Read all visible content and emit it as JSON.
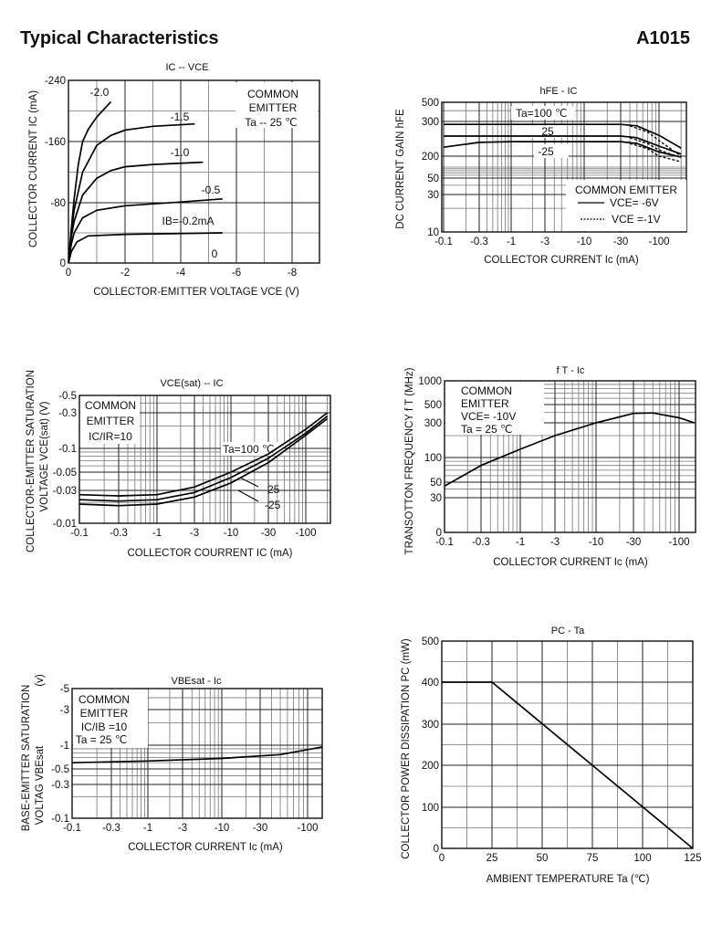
{
  "page": {
    "heading": "Typical Characteristics",
    "part_number": "A1015"
  },
  "chart_data": [
    {
      "id": "ic-vce",
      "type": "line",
      "title": "IC -- VCE",
      "xlabel": "COLLECTOR-EMITTER VOLTAGE   VCE (V)",
      "ylabel": "COLLECTOR CURRENT IC (mA)",
      "x_scale": "linear",
      "y_scale": "linear",
      "xticks": [
        0,
        -2,
        -4,
        -6,
        -8
      ],
      "xtick_labels": [
        "0",
        "-2",
        "-4",
        "-6",
        "-8"
      ],
      "yticks": [
        0,
        -80,
        -160,
        -240
      ],
      "ytick_labels": [
        "0",
        "-80",
        "-160",
        "-240"
      ],
      "legend": [
        "COMMON",
        "EMITTER",
        "Ta --  25 ℃"
      ],
      "series": [
        {
          "name": "IB=-2.0mA",
          "label": "-2.0",
          "style": "solid",
          "points": [
            [
              0,
              0
            ],
            [
              -0.1,
              -45
            ],
            [
              -0.2,
              -85
            ],
            [
              -0.35,
              -130
            ],
            [
              -0.5,
              -160
            ],
            [
              -0.7,
              -176
            ],
            [
              -1.0,
              -192
            ],
            [
              -1.5,
              -212
            ]
          ]
        },
        {
          "name": "IB=-1.5mA",
          "label": "-1.5",
          "style": "solid",
          "points": [
            [
              0,
              0
            ],
            [
              -0.1,
              -40
            ],
            [
              -0.2,
              -70
            ],
            [
              -0.5,
              -120
            ],
            [
              -1,
              -155
            ],
            [
              -1.5,
              -168
            ],
            [
              -2,
              -175
            ],
            [
              -3,
              -180
            ],
            [
              -4.5,
              -183
            ]
          ]
        },
        {
          "name": "IB=-1.0mA",
          "label": "-1.0",
          "style": "solid",
          "points": [
            [
              0,
              0
            ],
            [
              -0.1,
              -35
            ],
            [
              -0.2,
              -55
            ],
            [
              -0.5,
              -90
            ],
            [
              -1,
              -112
            ],
            [
              -1.5,
              -122
            ],
            [
              -2,
              -127
            ],
            [
              -3,
              -130
            ],
            [
              -4.8,
              -133
            ]
          ]
        },
        {
          "name": "IB=-0.5mA",
          "label": "-0.5",
          "style": "solid",
          "points": [
            [
              0,
              0
            ],
            [
              -0.1,
              -25
            ],
            [
              -0.2,
              -40
            ],
            [
              -0.5,
              -60
            ],
            [
              -1,
              -70
            ],
            [
              -2,
              -76
            ],
            [
              -4,
              -81
            ],
            [
              -5.5,
              -85
            ]
          ]
        },
        {
          "name": "IB=-0.2mA",
          "label": "IB=-0.2mA",
          "style": "solid",
          "points": [
            [
              0,
              0
            ],
            [
              -0.1,
              -15
            ],
            [
              -0.3,
              -28
            ],
            [
              -0.7,
              -36
            ],
            [
              -2,
              -38
            ],
            [
              -5.5,
              -40
            ]
          ]
        },
        {
          "name": "IB=0",
          "label": "0",
          "style": "none",
          "points": []
        }
      ]
    },
    {
      "id": "hfe-ic",
      "type": "line",
      "title": "hFE  -  IC",
      "xlabel": "COLLECTOR CURRENT Ic  (mA)",
      "ylabel": "DC CURRENT GAIN hFE",
      "x_scale": "log",
      "y_scale": "log",
      "xticks": [
        -0.1,
        -0.3,
        -1,
        -3,
        -10,
        -30,
        -100
      ],
      "xtick_labels": [
        "-0.1",
        "-0.3",
        "-1",
        "-3",
        "-10",
        "-30",
        "-100"
      ],
      "yticks": [
        10,
        30,
        50,
        200,
        300,
        500
      ],
      "ytick_labels": [
        "10",
        "30",
        "50",
        "200",
        "300",
        "500"
      ],
      "legend": [
        "COMMON EMITTER",
        "VCE= -6V",
        "VCE =-1V"
      ],
      "series": [
        {
          "name": "Ta=100 VCE=-6V",
          "label": "Ta=100 ℃",
          "style": "solid",
          "points": [
            [
              -0.1,
              290
            ],
            [
              -30,
              290
            ],
            [
              -50,
              285
            ],
            [
              -100,
              255
            ],
            [
              -200,
              220
            ]
          ]
        },
        {
          "name": "Ta=25 VCE=-6V",
          "label": "25",
          "style": "solid",
          "points": [
            [
              -0.1,
              253
            ],
            [
              -30,
              253
            ],
            [
              -50,
              248
            ],
            [
              -100,
              225
            ],
            [
              -200,
              205
            ]
          ]
        },
        {
          "name": "Ta=-25 VCE=-6V",
          "label": "-25",
          "style": "solid",
          "points": [
            [
              -0.1,
              222
            ],
            [
              -0.3,
              235
            ],
            [
              -1,
              237
            ],
            [
              -30,
              237
            ],
            [
              -50,
              232
            ],
            [
              -100,
              210
            ],
            [
              -200,
              190
            ]
          ]
        },
        {
          "name": "Ta=100 VCE=-1V",
          "label": "",
          "style": "dashed",
          "points": [
            [
              -40,
              285
            ],
            [
              -70,
              265
            ],
            [
              -100,
              240
            ],
            [
              -200,
              200
            ]
          ]
        },
        {
          "name": "Ta=25 VCE=-1V",
          "label": "",
          "style": "dashed",
          "points": [
            [
              -40,
              248
            ],
            [
              -70,
              232
            ],
            [
              -100,
              215
            ],
            [
              -200,
              180
            ]
          ]
        },
        {
          "name": "Ta=-25 VCE=-1V",
          "label": "",
          "style": "dashed",
          "points": [
            [
              -40,
              232
            ],
            [
              -70,
              218
            ],
            [
              -100,
              200
            ],
            [
              -200,
              140
            ]
          ]
        }
      ]
    },
    {
      "id": "vcesat-ic",
      "type": "line",
      "title": "VCE(sat) -- IC",
      "xlabel": "COLLECTOR COURRENT IC (mA)",
      "ylabel": "COLLECTOR-EMITTER SATURATION",
      "ylabel2": "VOLTAGE VCE(sat)  (V)",
      "x_scale": "log",
      "y_scale": "log",
      "xticks": [
        -0.1,
        -0.3,
        -1,
        -3,
        -10,
        -30,
        -100
      ],
      "xtick_labels": [
        "-0.1",
        "-0.3",
        "-1",
        "-3",
        "-10",
        "-30",
        "-100"
      ],
      "yticks": [
        -0.01,
        -0.03,
        -0.05,
        -0.1,
        -0.3,
        -0.5
      ],
      "ytick_labels": [
        "-0.01",
        "-0.03",
        "-0.05",
        "-0.1",
        "-0.3",
        "-0.5"
      ],
      "legend": [
        "COMMON",
        "EMITTER",
        "IC/IR=10"
      ],
      "series": [
        {
          "name": "Ta=100",
          "label": "Ta=100 ℃",
          "style": "solid",
          "points": [
            [
              -0.1,
              -0.026
            ],
            [
              -0.3,
              -0.025
            ],
            [
              -1,
              -0.026
            ],
            [
              -3,
              -0.033
            ],
            [
              -10,
              -0.05
            ],
            [
              -30,
              -0.085
            ],
            [
              -100,
              -0.18
            ],
            [
              -200,
              -0.3
            ]
          ]
        },
        {
          "name": "Ta=25",
          "label": "25",
          "style": "solid",
          "points": [
            [
              -0.1,
              -0.022
            ],
            [
              -0.3,
              -0.021
            ],
            [
              -1,
              -0.022
            ],
            [
              -3,
              -0.028
            ],
            [
              -10,
              -0.043
            ],
            [
              -30,
              -0.075
            ],
            [
              -100,
              -0.16
            ],
            [
              -200,
              -0.27
            ]
          ]
        },
        {
          "name": "Ta=-25",
          "label": "-25",
          "style": "solid",
          "points": [
            [
              -0.1,
              -0.019
            ],
            [
              -0.3,
              -0.018
            ],
            [
              -1,
              -0.019
            ],
            [
              -3,
              -0.024
            ],
            [
              -10,
              -0.037
            ],
            [
              -30,
              -0.066
            ],
            [
              -100,
              -0.15
            ],
            [
              -200,
              -0.25
            ]
          ]
        }
      ]
    },
    {
      "id": "ft-ic",
      "type": "line",
      "title": "f T   -    Ic",
      "xlabel": "COLLECTOR CURRENT Ic (mA)",
      "ylabel": "TRANSOTTON FREQUENCY f T  (MHz)",
      "x_scale": "log",
      "y_scale": "log",
      "xticks": [
        -0.1,
        -0.3,
        -1,
        -3,
        -10,
        -30,
        -100
      ],
      "xtick_labels": [
        "-0.1",
        "-0.3",
        "-1",
        "-3",
        "-10",
        "-30",
        "-100"
      ],
      "yticks": [
        0,
        30,
        50,
        100,
        300,
        500,
        1000
      ],
      "ytick_labels": [
        "0",
        "30",
        "50",
        "100",
        "300",
        "500",
        "1000"
      ],
      "legend": [
        "COMMON",
        "EMITTER",
        "VCE= -10V",
        "Ta = 25 ℃"
      ],
      "series": [
        {
          "name": "VCE=-10V Ta=25",
          "label": "",
          "style": "solid",
          "points": [
            [
              -0.1,
              44
            ],
            [
              -0.3,
              80
            ],
            [
              -1,
              130
            ],
            [
              -3,
              200
            ],
            [
              -10,
              300
            ],
            [
              -30,
              390
            ],
            [
              -50,
              395
            ],
            [
              -100,
              345
            ],
            [
              -150,
              300
            ]
          ]
        }
      ]
    },
    {
      "id": "vbesat-ic",
      "type": "line",
      "title": "VBEsat  -  Ic",
      "xlabel": "COLLECTOR CURRENT  Ic   (mA)",
      "ylabel": "BASE-EMITTER SATURATION",
      "ylabel2": "VOLTAG VBEsat",
      "ylabel_unit": "(v)",
      "x_scale": "log",
      "y_scale": "log",
      "xticks": [
        -0.1,
        -0.3,
        -1,
        -3,
        -10,
        -30,
        -100
      ],
      "xtick_labels": [
        "-0.1",
        "-0.3",
        "-1",
        "-3",
        "-10",
        "-30",
        "-100"
      ],
      "yticks": [
        -0.1,
        -0.3,
        -0.5,
        -1,
        -3,
        -5
      ],
      "ytick_labels": [
        "-0.1",
        "-0.3",
        "-0.5",
        "-1",
        "-3",
        "-5"
      ],
      "legend": [
        "COMMON",
        "EMITTER",
        "IC/IB =10",
        "Ta = 25 ℃"
      ],
      "series": [
        {
          "name": "IC/IB=10 Ta=25",
          "label": "",
          "style": "solid",
          "points": [
            [
              -0.1,
              -0.6
            ],
            [
              -1,
              -0.63
            ],
            [
              -10,
              -0.68
            ],
            [
              -50,
              -0.76
            ],
            [
              -150,
              -0.95
            ]
          ]
        }
      ]
    },
    {
      "id": "pc-ta",
      "type": "line",
      "title": "PC - Ta",
      "xlabel": "AMBIENT TEMPERATURE Ta (℃)",
      "ylabel": "COLLECTOR POWER DISSIPATION PC (mW)",
      "x_scale": "linear",
      "y_scale": "linear",
      "xticks": [
        0,
        25,
        50,
        75,
        100,
        125
      ],
      "xtick_labels": [
        "0",
        "25",
        "50",
        "75",
        "100",
        "125"
      ],
      "yticks": [
        0,
        100,
        200,
        300,
        400,
        500
      ],
      "ytick_labels": [
        "0",
        "100",
        "200",
        "300",
        "400",
        "500"
      ],
      "series": [
        {
          "name": "PC derating",
          "label": "",
          "style": "solid",
          "points": [
            [
              0,
              400
            ],
            [
              25,
              400
            ],
            [
              125,
              0
            ]
          ]
        }
      ]
    }
  ]
}
